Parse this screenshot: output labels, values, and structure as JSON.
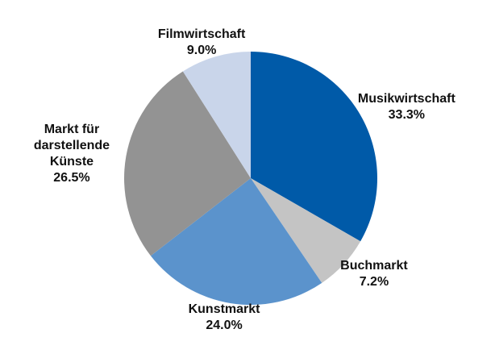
{
  "chart_data": {
    "type": "pie",
    "categories": [
      "Musikwirtschaft",
      "Buchmarkt",
      "Kunstmarkt",
      "Markt für darstellende Künste",
      "Filmwirtschaft"
    ],
    "values": [
      33.3,
      7.2,
      24.0,
      26.5,
      9.0
    ],
    "value_labels": [
      "33.3%",
      "7.2%",
      "24.0%",
      "26.5%",
      "9.0%"
    ],
    "colors": [
      "#005aa8",
      "#c4c4c4",
      "#5b93cc",
      "#939393",
      "#c9d5ea"
    ]
  }
}
